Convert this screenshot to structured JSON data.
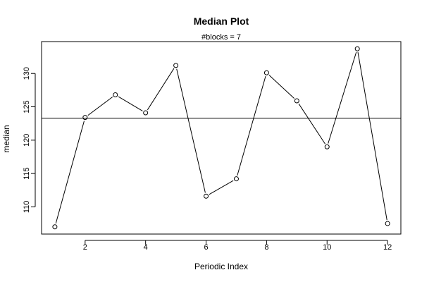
{
  "chart_data": {
    "type": "line",
    "title": "Median Plot",
    "subtitle": "#blocks =  7",
    "xlabel": "Periodic Index",
    "ylabel": "median",
    "x": [
      1,
      2,
      3,
      4,
      5,
      6,
      7,
      8,
      9,
      10,
      11,
      12
    ],
    "series": [
      {
        "values": [
          107.0,
          123.4,
          126.8,
          124.1,
          131.2,
          111.6,
          114.2,
          130.1,
          125.9,
          119.0,
          133.7,
          107.5
        ]
      }
    ],
    "reference_line": 123.3,
    "xticks": [
      2,
      4,
      6,
      8,
      10,
      12
    ],
    "yticks": [
      110,
      115,
      120,
      125,
      130
    ],
    "xlim": [
      0.56,
      12.44
    ],
    "ylim": [
      105.92,
      134.78
    ],
    "grid": false,
    "markers": "open-circle",
    "line_color": "#000000"
  }
}
